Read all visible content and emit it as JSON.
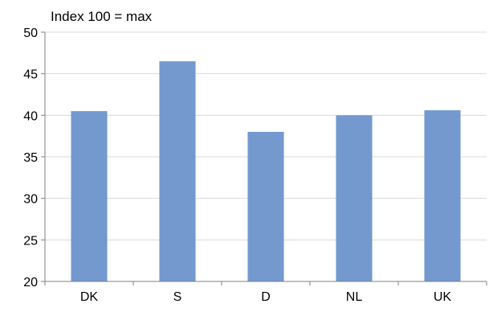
{
  "chart_data": {
    "type": "bar",
    "title": "Index 100 = max",
    "xlabel": "",
    "ylabel": "",
    "categories": [
      "DK",
      "S",
      "D",
      "NL",
      "UK"
    ],
    "values": [
      40.5,
      46.5,
      38.0,
      40.0,
      40.6
    ],
    "ylim": [
      20,
      50
    ],
    "yticks": [
      "20",
      "25",
      "30",
      "35",
      "40",
      "45",
      "50"
    ],
    "grid": true,
    "legend": "none",
    "colors": {
      "bar": "#7399cf",
      "grid": "#d9d9d9",
      "axis": "#808080"
    }
  }
}
